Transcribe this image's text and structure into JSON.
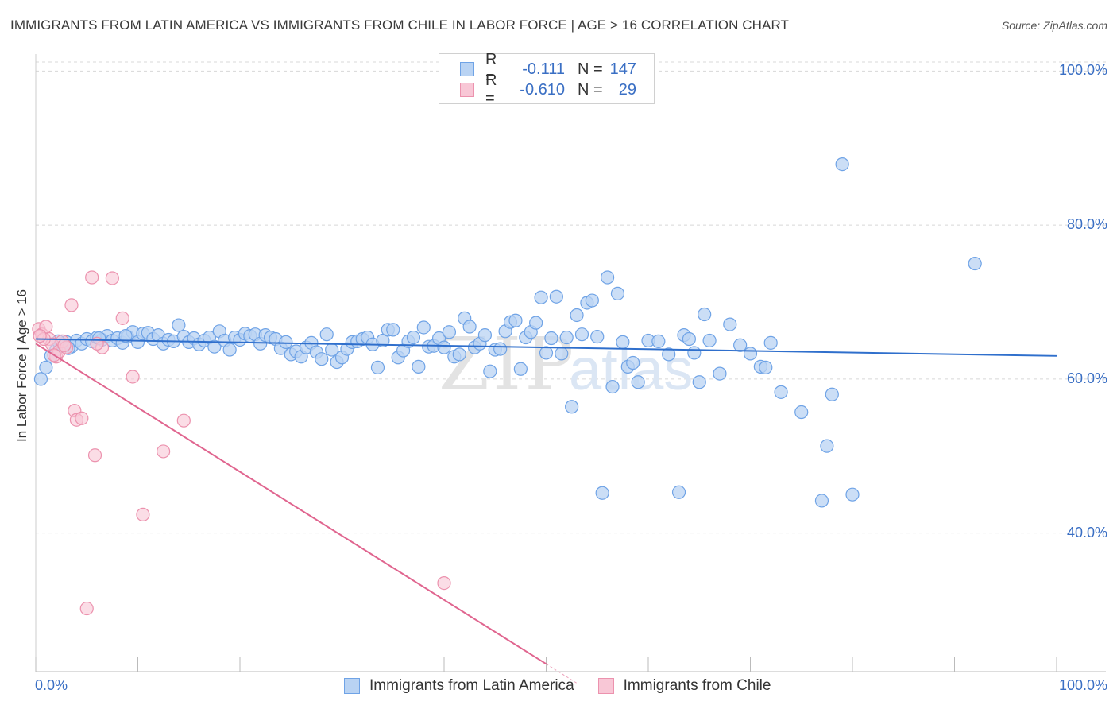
{
  "header": {
    "title": "IMMIGRANTS FROM LATIN AMERICA VS IMMIGRANTS FROM CHILE IN LABOR FORCE | AGE > 16 CORRELATION CHART",
    "source": "Source: ZipAtlas.com"
  },
  "watermark": {
    "zip": "ZIP",
    "atlas": "atlas"
  },
  "legend": {
    "row1": {
      "r_label": "R =",
      "r_value": "-0.111",
      "n_label": "N =",
      "n_value": "147"
    },
    "row2": {
      "r_label": "R =",
      "r_value": "-0.610",
      "n_label": "N =",
      "n_value": "29"
    }
  },
  "colors": {
    "blue": "#6fa3e6",
    "blue_fill": "#b9d3f3",
    "blue_line": "#2f6fcc",
    "pink": "#ec92ae",
    "pink_fill": "#f8c7d6",
    "pink_line": "#e0658f",
    "grid": "#d8d8d8",
    "tick_text": "#3a6fc4"
  },
  "chart_data": {
    "type": "scatter",
    "title": "IMMIGRANTS FROM LATIN AMERICA VS IMMIGRANTS FROM CHILE IN LABOR FORCE | AGE > 16 CORRELATION CHART",
    "xlabel": "",
    "ylabel": "In Labor Force | Age > 16",
    "xlim": [
      0,
      100
    ],
    "ylim": [
      22,
      102
    ],
    "x_tick_labels": [
      "0.0%",
      "100.0%"
    ],
    "y_ticks": [
      40,
      60,
      80,
      100
    ],
    "y_tick_labels": [
      "40.0%",
      "60.0%",
      "80.0%",
      "100.0%"
    ],
    "grid": "horizontal dashed",
    "legend_position": "top-center",
    "series": [
      {
        "name": "Immigrants from Latin America",
        "color": "#6fa3e6",
        "trend": {
          "x": [
            0,
            100
          ],
          "y": [
            65.2,
            63.0
          ]
        },
        "points": [
          [
            0.5,
            60.0
          ],
          [
            1,
            61.5
          ],
          [
            1.5,
            63.0
          ],
          [
            2,
            63.8
          ],
          [
            2.5,
            64.5
          ],
          [
            3,
            64.8
          ],
          [
            3.5,
            64.2
          ],
          [
            4,
            65.0
          ],
          [
            4.5,
            64.6
          ],
          [
            5,
            65.2
          ],
          [
            5.5,
            64.9
          ],
          [
            6,
            65.4
          ],
          [
            6.5,
            65.1
          ],
          [
            7,
            65.6
          ],
          [
            7.5,
            65.0
          ],
          [
            8,
            65.3
          ],
          [
            8.5,
            64.7
          ],
          [
            9,
            65.5
          ],
          [
            9.5,
            66.1
          ],
          [
            10,
            64.8
          ],
          [
            10.5,
            65.9
          ],
          [
            11,
            66.0
          ],
          [
            11.5,
            65.2
          ],
          [
            12,
            65.7
          ],
          [
            12.5,
            64.6
          ],
          [
            13,
            65.1
          ],
          [
            13.5,
            64.9
          ],
          [
            14,
            67.0
          ],
          [
            14.5,
            65.5
          ],
          [
            15,
            64.8
          ],
          [
            15.5,
            65.3
          ],
          [
            16,
            64.5
          ],
          [
            16.5,
            65.0
          ],
          [
            17,
            65.4
          ],
          [
            17.5,
            64.2
          ],
          [
            18,
            66.2
          ],
          [
            18.5,
            65.0
          ],
          [
            19,
            63.8
          ],
          [
            19.5,
            65.4
          ],
          [
            20,
            65.1
          ],
          [
            20.5,
            65.9
          ],
          [
            21,
            65.6
          ],
          [
            21.5,
            65.8
          ],
          [
            22,
            64.6
          ],
          [
            22.5,
            65.7
          ],
          [
            23,
            65.4
          ],
          [
            23.5,
            65.2
          ],
          [
            24,
            64.0
          ],
          [
            24.5,
            64.8
          ],
          [
            25,
            63.2
          ],
          [
            25.5,
            63.6
          ],
          [
            26,
            62.9
          ],
          [
            26.5,
            64.1
          ],
          [
            27,
            64.7
          ],
          [
            27.5,
            63.5
          ],
          [
            28,
            62.6
          ],
          [
            28.5,
            65.8
          ],
          [
            29,
            63.8
          ],
          [
            29.5,
            62.2
          ],
          [
            30,
            62.8
          ],
          [
            30.5,
            63.9
          ],
          [
            31,
            64.8
          ],
          [
            31.5,
            64.9
          ],
          [
            32,
            65.2
          ],
          [
            32.5,
            65.4
          ],
          [
            33,
            64.5
          ],
          [
            33.5,
            61.5
          ],
          [
            34,
            65.0
          ],
          [
            34.5,
            66.4
          ],
          [
            35,
            66.4
          ],
          [
            35.5,
            62.8
          ],
          [
            36,
            63.7
          ],
          [
            36.5,
            64.9
          ],
          [
            37,
            65.4
          ],
          [
            37.5,
            61.6
          ],
          [
            38,
            66.7
          ],
          [
            38.5,
            64.2
          ],
          [
            39,
            64.3
          ],
          [
            39.5,
            65.3
          ],
          [
            40,
            64.1
          ],
          [
            40.5,
            66.1
          ],
          [
            41,
            62.9
          ],
          [
            41.5,
            63.2
          ],
          [
            42,
            67.9
          ],
          [
            42.5,
            66.8
          ],
          [
            43,
            64.1
          ],
          [
            43.5,
            64.6
          ],
          [
            44,
            65.7
          ],
          [
            44.5,
            61.0
          ],
          [
            45,
            63.8
          ],
          [
            45.5,
            63.9
          ],
          [
            46,
            66.2
          ],
          [
            46.5,
            67.4
          ],
          [
            47,
            67.6
          ],
          [
            47.5,
            61.3
          ],
          [
            48,
            65.4
          ],
          [
            48.5,
            66.1
          ],
          [
            49,
            67.3
          ],
          [
            49.5,
            70.6
          ],
          [
            50,
            63.4
          ],
          [
            50.5,
            65.3
          ],
          [
            51,
            70.7
          ],
          [
            51.5,
            63.3
          ],
          [
            52,
            65.4
          ],
          [
            52.5,
            56.4
          ],
          [
            53,
            68.3
          ],
          [
            53.5,
            65.8
          ],
          [
            54,
            69.9
          ],
          [
            54.5,
            70.2
          ],
          [
            55,
            65.5
          ],
          [
            55.5,
            45.2
          ],
          [
            56,
            73.2
          ],
          [
            56.5,
            59.0
          ],
          [
            57,
            71.1
          ],
          [
            57.5,
            64.8
          ],
          [
            58,
            61.6
          ],
          [
            58.5,
            62.1
          ],
          [
            59,
            59.6
          ],
          [
            60,
            65.0
          ],
          [
            61,
            64.9
          ],
          [
            62,
            63.2
          ],
          [
            63,
            45.3
          ],
          [
            63.5,
            65.7
          ],
          [
            64,
            65.2
          ],
          [
            64.5,
            63.4
          ],
          [
            65,
            59.6
          ],
          [
            65.5,
            68.4
          ],
          [
            66,
            65.0
          ],
          [
            67,
            60.7
          ],
          [
            68,
            67.1
          ],
          [
            69,
            64.4
          ],
          [
            70,
            63.3
          ],
          [
            71,
            61.6
          ],
          [
            71.5,
            61.5
          ],
          [
            72,
            64.7
          ],
          [
            73,
            58.3
          ],
          [
            75,
            55.7
          ],
          [
            77,
            44.2
          ],
          [
            77.5,
            51.3
          ],
          [
            78,
            58.0
          ],
          [
            79,
            87.9
          ],
          [
            80,
            45.0
          ],
          [
            92,
            75.0
          ],
          [
            2.2,
            64.9
          ],
          [
            3.2,
            64.0
          ],
          [
            6.2,
            65.3
          ],
          [
            8.8,
            65.6
          ]
        ]
      },
      {
        "name": "Immigrants from Chile",
        "color": "#ec92ae",
        "trend": {
          "x": [
            0,
            50
          ],
          "y": [
            64.6,
            23.0
          ]
        },
        "points": [
          [
            0.3,
            66.5
          ],
          [
            0.6,
            65.8
          ],
          [
            1.0,
            66.8
          ],
          [
            1.3,
            65.2
          ],
          [
            1.6,
            64.5
          ],
          [
            2,
            62.9
          ],
          [
            2.3,
            63.6
          ],
          [
            2.6,
            64.9
          ],
          [
            3,
            64.1
          ],
          [
            3.5,
            69.6
          ],
          [
            3.8,
            55.9
          ],
          [
            4,
            54.7
          ],
          [
            4.5,
            54.9
          ],
          [
            5.5,
            73.2
          ],
          [
            5.8,
            50.1
          ],
          [
            6.5,
            64.1
          ],
          [
            7.5,
            73.1
          ],
          [
            8.5,
            67.9
          ],
          [
            9.5,
            60.3
          ],
          [
            10.5,
            42.4
          ],
          [
            12.5,
            50.6
          ],
          [
            14.5,
            54.6
          ],
          [
            6,
            64.6
          ],
          [
            5,
            30.2
          ],
          [
            0.8,
            65.2
          ],
          [
            1.8,
            63.1
          ],
          [
            2.8,
            64.4
          ],
          [
            0.4,
            65.6
          ],
          [
            40,
            33.5
          ]
        ]
      }
    ]
  }
}
